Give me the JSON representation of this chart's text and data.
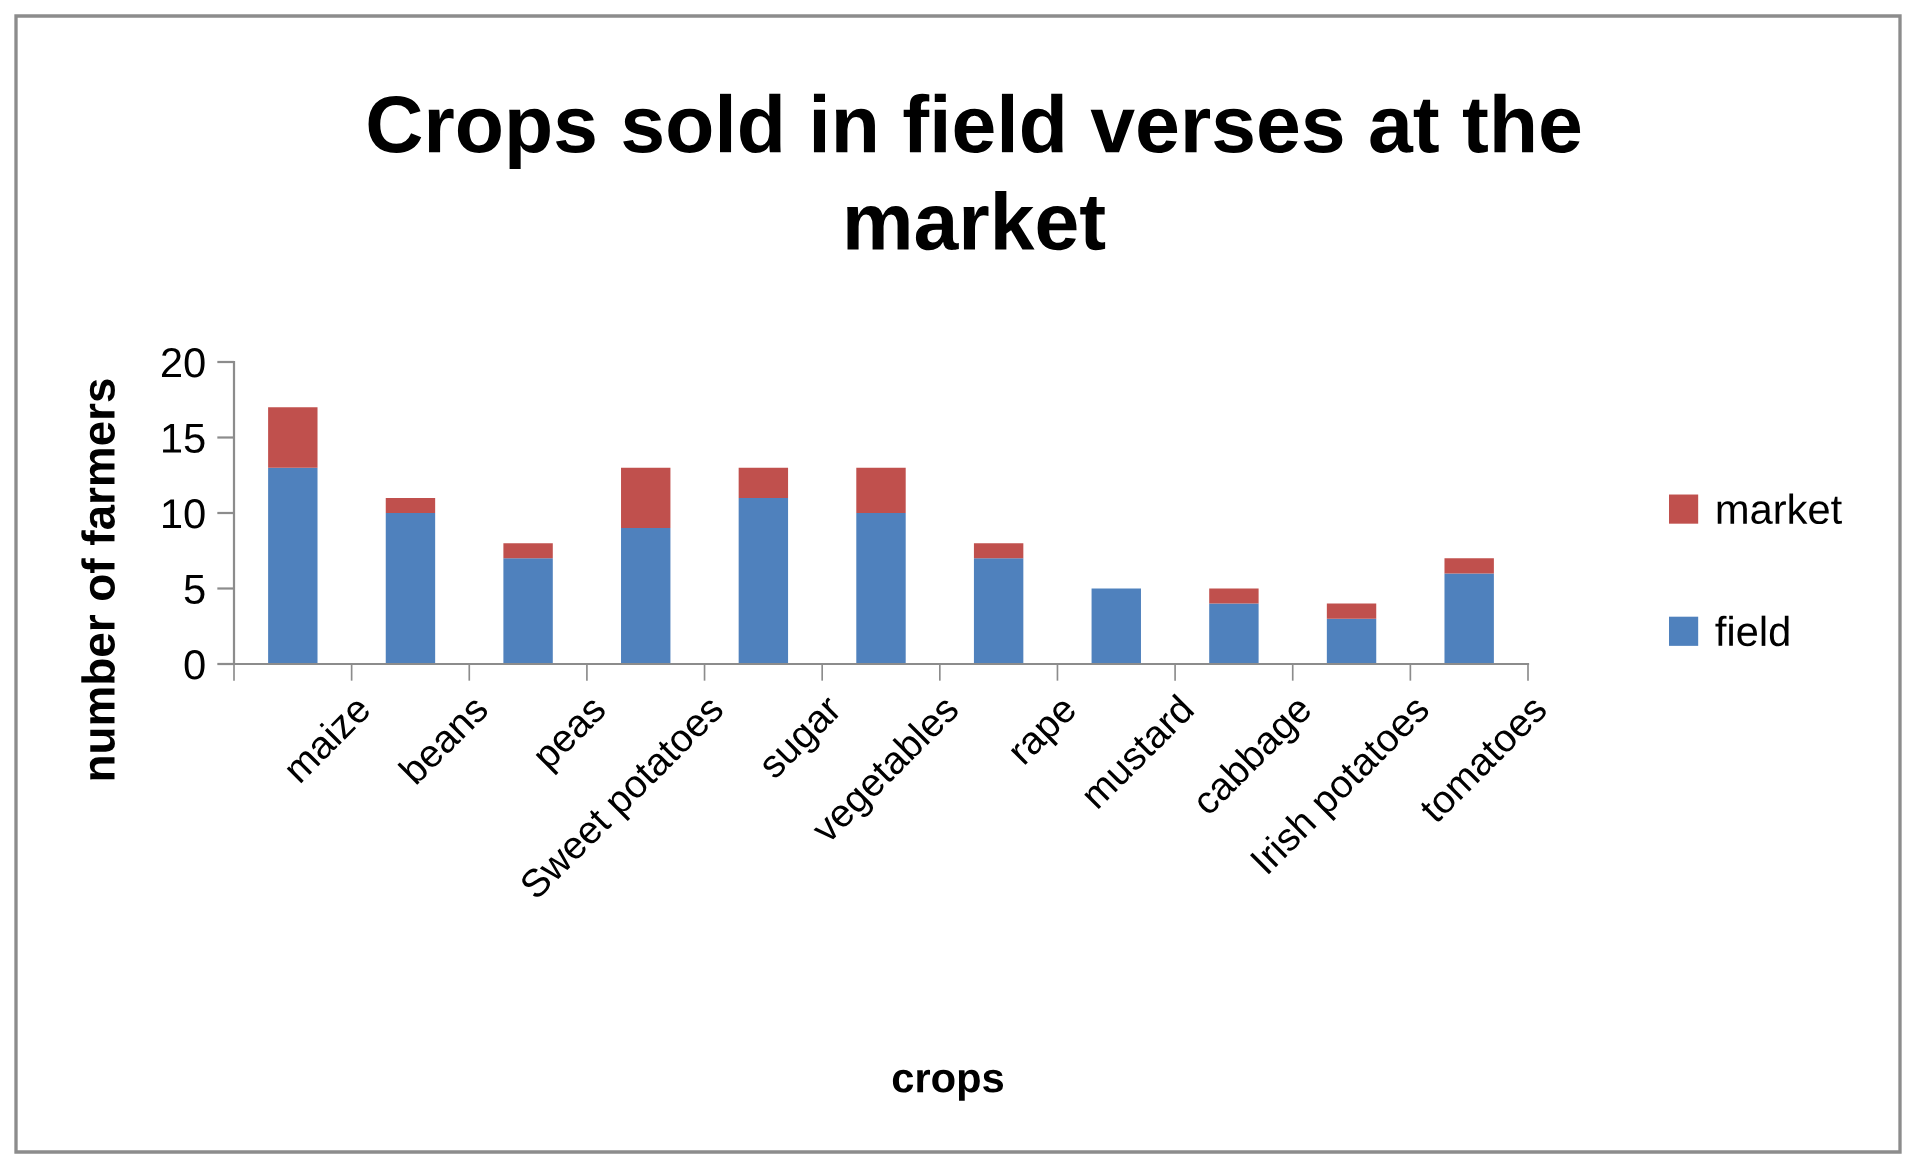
{
  "chart_data": {
    "type": "bar",
    "title": "Crops sold in field verses at the market",
    "xlabel": "crops",
    "ylabel": "number of farmers",
    "categories": [
      "maize",
      "beans",
      "peas",
      "Sweet potatoes",
      "sugar",
      "vegetables",
      "rape",
      "mustard",
      "cabbage",
      "Irish potatoes",
      "tomatoes"
    ],
    "series": [
      {
        "name": "field",
        "color": "#4f81bd",
        "values": [
          13,
          10,
          7,
          9,
          11,
          10,
          7,
          5,
          4,
          3,
          6
        ]
      },
      {
        "name": "market",
        "color": "#c0504d",
        "values": [
          4,
          1,
          1,
          4,
          2,
          3,
          1,
          0,
          1,
          1,
          1
        ]
      }
    ],
    "stacked": true,
    "ylim": [
      0,
      20
    ],
    "yticks": [
      0,
      5,
      10,
      15,
      20
    ],
    "grid": false,
    "legend": "right"
  }
}
